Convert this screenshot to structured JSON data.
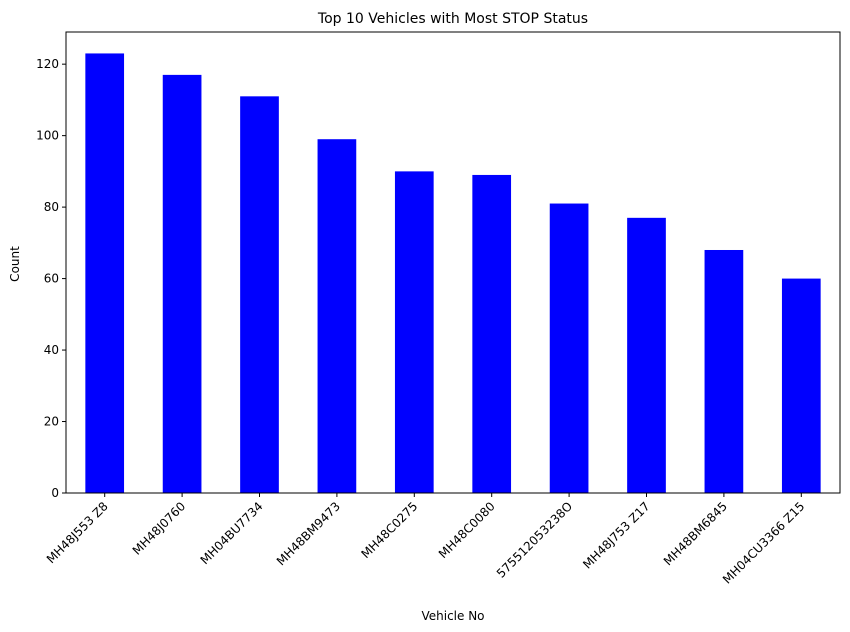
{
  "chart_data": {
    "type": "bar",
    "title": "Top 10 Vehicles with Most STOP Status",
    "xlabel": "Vehicle No",
    "ylabel": "Count",
    "categories": [
      "MH48J553 Z8",
      "MH48J0760",
      "MH04BU7734",
      "MH48BM9473",
      "MH48C0275",
      "MH48C0080",
      "575512053238O",
      "MH48J753 Z17",
      "MH48BM6845",
      "MH04CU3366 Z15"
    ],
    "values": [
      123,
      117,
      111,
      99,
      90,
      89,
      81,
      77,
      68,
      60
    ],
    "ylim": [
      0,
      129
    ],
    "yticks": [
      0,
      20,
      40,
      60,
      80,
      100,
      120
    ],
    "bar_color": "#0000ff",
    "grid": false
  }
}
